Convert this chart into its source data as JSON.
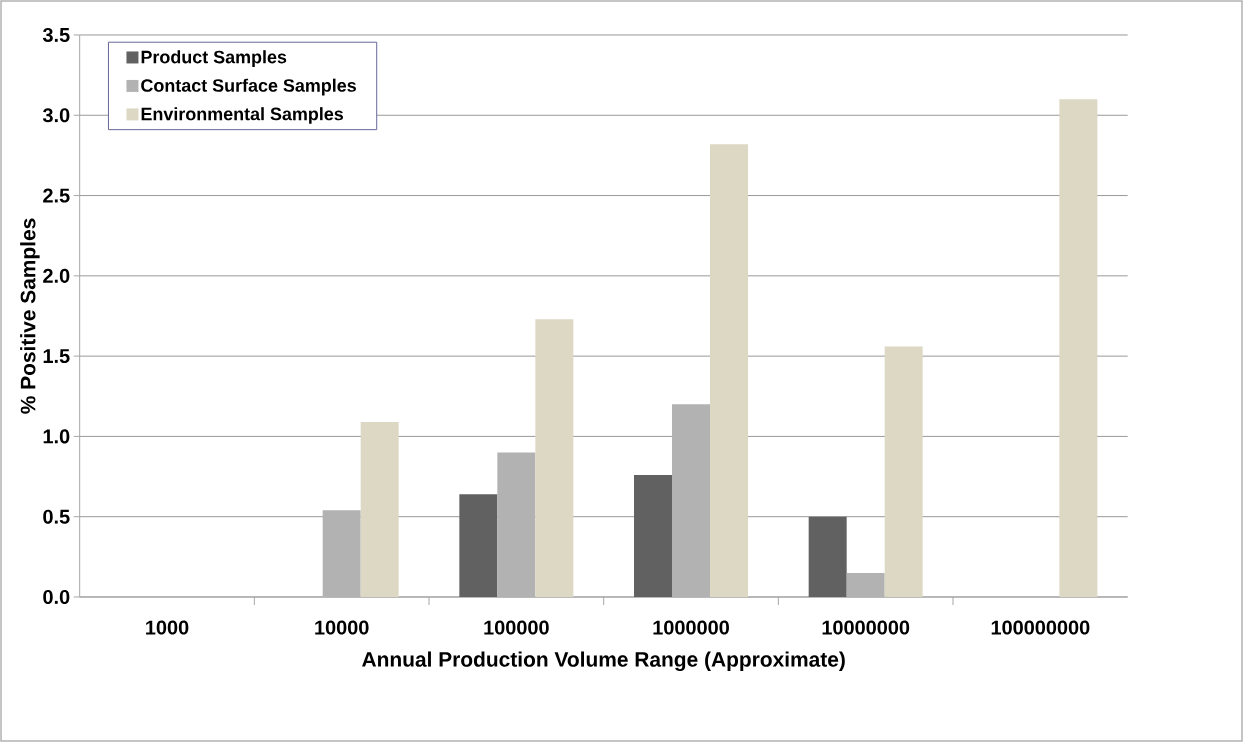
{
  "chart_data": {
    "type": "bar",
    "xlabel": "Annual Production Volume Range (Approximate)",
    "ylabel": "% Positive Samples",
    "categories": [
      "1000",
      "10000",
      "100000",
      "1000000",
      "10000000",
      "100000000"
    ],
    "series": [
      {
        "name": "Product Samples",
        "color": "#616161",
        "values": [
          0,
          0,
          0.64,
          0.76,
          0.5,
          0
        ]
      },
      {
        "name": "Contact Surface Samples",
        "color": "#b2b2b2",
        "values": [
          0,
          0.54,
          0.9,
          1.2,
          0.15,
          0
        ]
      },
      {
        "name": "Environmental Samples",
        "color": "#ddd8c4",
        "values": [
          0,
          1.09,
          1.73,
          2.82,
          1.56,
          3.1
        ]
      }
    ],
    "ylim": [
      0,
      3.5
    ],
    "yticks": [
      {
        "value": 0,
        "label": "0.0"
      },
      {
        "value": 0.5,
        "label": "0.5"
      },
      {
        "value": 1,
        "label": "1.0"
      },
      {
        "value": 1.5,
        "label": "1.5"
      },
      {
        "value": 2,
        "label": "2.0"
      },
      {
        "value": 2.5,
        "label": "2.5"
      },
      {
        "value": 3,
        "label": "3.0"
      },
      {
        "value": 3.5,
        "label": "3.5"
      }
    ],
    "grid": "y",
    "legend": "top left"
  }
}
